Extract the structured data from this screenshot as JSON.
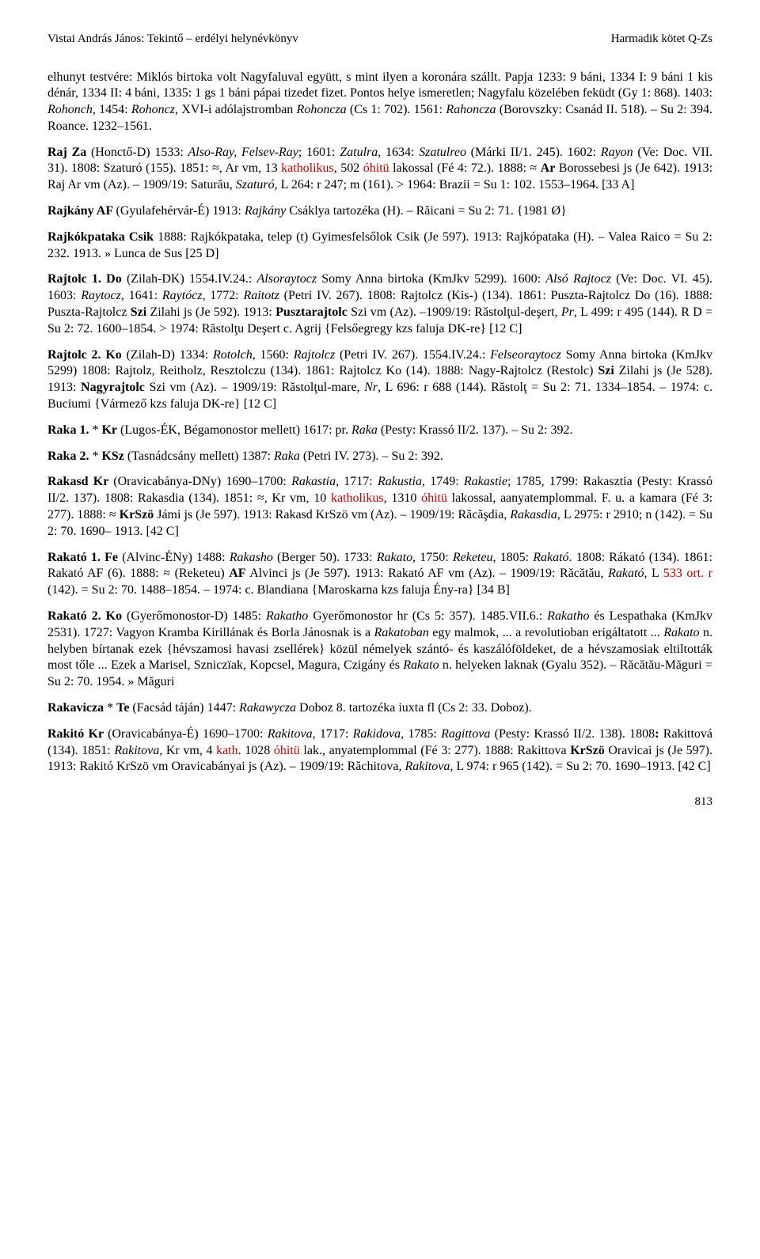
{
  "header": {
    "left": "Vistai András János: Tekintő – erdélyi helynévkönyv",
    "right": "Harmadik kötet Q-Zs"
  },
  "pagenum": "813",
  "colors": {
    "red": "#c00000",
    "text": "#000000",
    "background": "#ffffff"
  },
  "paras": [
    {
      "runs": [
        {
          "t": "elhunyt testvére: Miklós birtoka volt Nagyfaluval együtt, s mint ilyen a koronára szállt. Papja 1233: 9 báni, 1334 I: 9 báni 1 kis dénár, 1334 II: 4 báni, 1335: 1 gs 1 báni pápai tizedet fizet. Pontos helye ismeretlen; Nagyfalu közelében feküdt (Gy 1: 868). 1403: "
        },
        {
          "t": "Rohonch",
          "i": true
        },
        {
          "t": ", 1454: "
        },
        {
          "t": "Rohoncz",
          "i": true
        },
        {
          "t": ", XVI-i adólajstromban "
        },
        {
          "t": "Rohoncza",
          "i": true
        },
        {
          "t": " (Cs 1: 702). 1561: "
        },
        {
          "t": "Rahoncza",
          "i": true
        },
        {
          "t": " (Borovszky: Csanád II. 518). – Su 2: 394. Roance. 1232–1561."
        }
      ]
    },
    {
      "runs": [
        {
          "t": "Raj  Za ",
          "b": true
        },
        {
          "t": "(Honctő-D) 1533: "
        },
        {
          "t": "Also-Ray, Felsev-Ray",
          "i": true
        },
        {
          "t": "; 1601: "
        },
        {
          "t": "Zatulra",
          "i": true
        },
        {
          "t": ", 1634: "
        },
        {
          "t": "Szatulreo",
          "i": true
        },
        {
          "t": " (Márki II/1. 245). 1602: "
        },
        {
          "t": "Rayon",
          "i": true
        },
        {
          "t": " (Ve: Doc. VII. 31). 1808: Szaturó (155). 1851: ≈, Ar vm, 13 "
        },
        {
          "t": "katholikus",
          "red": true
        },
        {
          "t": ", 502 "
        },
        {
          "t": "óhitü",
          "red": true
        },
        {
          "t": " lakossal (Fé 4: 72.). 1888: ≈ "
        },
        {
          "t": "Ar",
          "b": true
        },
        {
          "t": " Borossebesi js (Je 642). 1913: Raj Ar vm (Az). – 1909/19: Saturău, "
        },
        {
          "t": "Szaturó",
          "i": true
        },
        {
          "t": ", L 264: r 247; m (161). > 1964:  Brazii = Su 1: 102. 1553–1964. [33 A]"
        }
      ]
    },
    {
      "runs": [
        {
          "t": "Rajkány  AF ",
          "b": true
        },
        {
          "t": "(Gyulafehérvár-É) 1913: "
        },
        {
          "t": "Rajkány",
          "i": true
        },
        {
          "t": " Csáklya tartozéka (H). – Răicani = Su 2: 71. {1981 Ø}"
        }
      ]
    },
    {
      "runs": [
        {
          "t": "Rajkókpataka  Csik ",
          "b": true
        },
        {
          "t": "1888: Rajkókpataka, telep (t) Gyimesfelsőlok   Csik (Je 597). 1913: Rajkópataka (H). – Valea Raico = Su 2: 232. 1913. » Lunca de Sus [25 D]"
        }
      ]
    },
    {
      "runs": [
        {
          "t": "Rajtolc 1.    Do ",
          "b": true
        },
        {
          "t": "   (Zilah-DK) 1554.IV.24.: "
        },
        {
          "t": "Alsoraytocz",
          "i": true
        },
        {
          "t": " Somy Anna birtoka (KmJkv 5299). 1600: "
        },
        {
          "t": "Alsó Rajtocz",
          "i": true
        },
        {
          "t": " (Ve: Doc. VI. 45). 1603: "
        },
        {
          "t": "Raytocz",
          "i": true
        },
        {
          "t": ", 1641: "
        },
        {
          "t": "Raytócz",
          "i": true
        },
        {
          "t": ", 1772: "
        },
        {
          "t": "Raitotz",
          "i": true
        },
        {
          "t": " (Petri IV. 267). 1808: Rajtolcz (Kis-) (134).  1861: Puszta-Rajtolcz Do (16).  1888: Puszta-Rajtolcz "
        },
        {
          "t": "Szi",
          "b": true
        },
        {
          "t": " Zilahi js (Je 592). 1913: "
        },
        {
          "t": "Pusztarajtolc",
          "b": true
        },
        {
          "t": " Szi vm (Az).  –1909/19: Răstolţul-deşert, "
        },
        {
          "t": "Pr",
          "i": true
        },
        {
          "t": ", L 499: r 495 (144). R D = Su 2: 72. 1600–1854.  > 1974: Răstolţu Deşert  c. Agrij  {Felsőegregy kzs faluja DK-re} [12 C]"
        }
      ]
    },
    {
      "runs": [
        {
          "t": "Rajtolc  2.   Ko ",
          "b": true
        },
        {
          "t": "   (Zilah-D) 1334: "
        },
        {
          "t": "Rotolch",
          "i": true
        },
        {
          "t": ", 1560: "
        },
        {
          "t": "Rajtolcz",
          "i": true
        },
        {
          "t": " (Petri IV. 267). 1554.IV.24.: "
        },
        {
          "t": "Felseoraytocz",
          "i": true
        },
        {
          "t": " Somy Anna birtoka (KmJkv 5299)  1808: Rajtolz, Reitholz, Resztolczu (134).  1861: Rajtolcz Ko (14).  1888:  Nagy-Rajtolcz (Restolc) "
        },
        {
          "t": "Szi",
          "b": true
        },
        {
          "t": " Zilahi js (Je 528). 1913: "
        },
        {
          "t": "Nagyrajtolc",
          "b": true
        },
        {
          "t": " Szi vm (Az).  – 1909/19: Răstolţul-mare, "
        },
        {
          "t": "Nr",
          "i": true
        },
        {
          "t": ", L 696: r 688 (144).  Răstolţ = Su 2: 71. 1334–1854. – 1974: c. Buciumi {Vármező kzs faluja DK-re} [12 C]"
        }
      ]
    },
    {
      "runs": [
        {
          "t": "Raka 1. ",
          "b": true
        },
        {
          "t": "* "
        },
        {
          "t": "Kr",
          "b": true
        },
        {
          "t": " (Lugos-ÉK, Bégamonostor mellett) 1617: pr. "
        },
        {
          "t": "Raka",
          "i": true
        },
        {
          "t": " (Pesty: Krassó II/2. 137). – Su 2: 392."
        }
      ]
    },
    {
      "runs": [
        {
          "t": "Raka 2. ",
          "b": true
        },
        {
          "t": "* "
        },
        {
          "t": "KSz",
          "b": true
        },
        {
          "t": " (Tasnádcsány mellett) 1387: "
        },
        {
          "t": "Raka",
          "i": true
        },
        {
          "t": " (Petri IV. 273). – Su 2: 392."
        }
      ]
    },
    {
      "runs": [
        {
          "t": "Rakasd Kr ",
          "b": true
        },
        {
          "t": "  (Oravicabánya-DNy) 1690–1700: "
        },
        {
          "t": "Rakastia",
          "i": true
        },
        {
          "t": ", 1717: "
        },
        {
          "t": "Rakustia",
          "i": true
        },
        {
          "t": ", 1749: "
        },
        {
          "t": "Rakastie",
          "i": true
        },
        {
          "t": "; 1785, 1799: Rakasztia (Pesty: Krassó II/2. 137). 1808: Rakasdia (134).  1851: ≈, Kr vm, 10 "
        },
        {
          "t": "katholikus",
          "red": true
        },
        {
          "t": ", 1310 "
        },
        {
          "t": "óhitü",
          "red": true
        },
        {
          "t": " lakossal, aanyatemplommal. F. u. a kamara (Fé 3: 277). 1888: ≈ "
        },
        {
          "t": "KrSzö",
          "b": true
        },
        {
          "t": "  Jámi js (Je 597). 1913: Rakasd KrSzö vm (Az). – 1909/19: Răcăşdia, "
        },
        {
          "t": "Rakasdia",
          "i": true
        },
        {
          "t": ", L 2975: r 2910; n (142). = Su 2: 70. 1690– 1913. [42 C]"
        }
      ]
    },
    {
      "runs": [
        {
          "t": "Rakató 1.   Fe ",
          "b": true
        },
        {
          "t": " (Alvinc-ÉNy) 1488: "
        },
        {
          "t": "Rakasho",
          "i": true
        },
        {
          "t": " (Berger 50). 1733: "
        },
        {
          "t": "Rakato",
          "i": true
        },
        {
          "t": ", 1750: "
        },
        {
          "t": "Reketeu",
          "i": true
        },
        {
          "t": ", 1805: "
        },
        {
          "t": "Rakató",
          "i": true
        },
        {
          "t": ". 1808: Rákató (134). 1861: Rakató   AF (6). 1888: ≈ (Reketeu) "
        },
        {
          "t": "AF",
          "b": true
        },
        {
          "t": " Alvinci js (Je 597). 1913: Rakató AF vm (Az). – 1909/19: Răcătău, "
        },
        {
          "t": "Rakató",
          "i": true
        },
        {
          "t": ", L "
        },
        {
          "t": "533 ort.",
          "red": true
        },
        {
          "t": " "
        },
        {
          "t": "r",
          "red": true
        },
        {
          "t": " (142). = Su 2: 70. 1488–1854. – 1974: c. Blandiana {Maroskarna kzs faluja Ény-ra} [34 B]"
        }
      ]
    },
    {
      "runs": [
        {
          "t": "Rakató  2.   Ko ",
          "b": true
        },
        {
          "t": "(Gyerőmonostor-D) 1485: "
        },
        {
          "t": "Rakatho",
          "i": true
        },
        {
          "t": " Gyerőmonostor hr (Cs 5: 357). 1485.VII.6.: "
        },
        {
          "t": "Rakatho",
          "i": true
        },
        {
          "t": " és Lespathaka (KmJkv 2531). 1727: Vagyon Kramba Kirillának és Borla Jánosnak is a "
        },
        {
          "t": "Rakatoban",
          "i": true
        },
        {
          "t": " egy malmok, ... a revolutioban erigáltatott ... "
        },
        {
          "t": "Rakato",
          "i": true
        },
        {
          "t": " n. helyben bírtanak ezek {hévszamosi havasi zsellérek} közül némelyek szántó- és kaszálóföldeket, de a hévszamosiak eltiltották most tőle ... Ezek a Marisel, Szniczïak, Kopcsel, Magura, Czigány és "
        },
        {
          "t": "Rakato",
          "i": true
        },
        {
          "t": " n. helyeken laknak (Gyalu 352). – Răcătău-Măguri = Su 2: 70. 1954. » Măguri"
        }
      ]
    },
    {
      "runs": [
        {
          "t": "Rakavicza ",
          "b": true
        },
        {
          "t": "* "
        },
        {
          "t": "Te",
          "b": true
        },
        {
          "t": " (Facsád táján) 1447: "
        },
        {
          "t": "Rakawycza",
          "i": true
        },
        {
          "t": " Doboz 8. tartozéka iuxta fl (Cs 2:  33. Doboz)."
        }
      ]
    },
    {
      "runs": [
        {
          "t": "Rakitó  Kr ",
          "b": true
        },
        {
          "t": "  (Oravicabánya-É) 1690–1700: "
        },
        {
          "t": "Rakitova",
          "i": true
        },
        {
          "t": ", 1717: "
        },
        {
          "t": "Rakidova",
          "i": true
        },
        {
          "t": ", 1785: "
        },
        {
          "t": "Ragittova",
          "i": true
        },
        {
          "t": " (Pesty: Krassó II/2. 138). 1808"
        },
        {
          "t": ": ",
          "b": true
        },
        {
          "t": "Rakittová (134). 1851: "
        },
        {
          "t": "Rakitova",
          "i": true
        },
        {
          "t": ", Kr vm, 4 "
        },
        {
          "t": "kath",
          "red": true
        },
        {
          "t": ". 1028 "
        },
        {
          "t": "óhitü",
          "red": true
        },
        {
          "t": " lak., anyatemplommal (Fé 3: 277). 1888: Rakittova "
        },
        {
          "t": "KrSzö",
          "b": true
        },
        {
          "t": "  Oravicai js (Je 597). 1913: Rakitó KrSzö vm Oravicabányai js (Az). – 1909/19: Răchitova, "
        },
        {
          "t": "Rakitova",
          "i": true
        },
        {
          "t": ", L 974: r 965 (142). = Su 2: 70. 1690–1913. [42 C]"
        }
      ]
    }
  ]
}
